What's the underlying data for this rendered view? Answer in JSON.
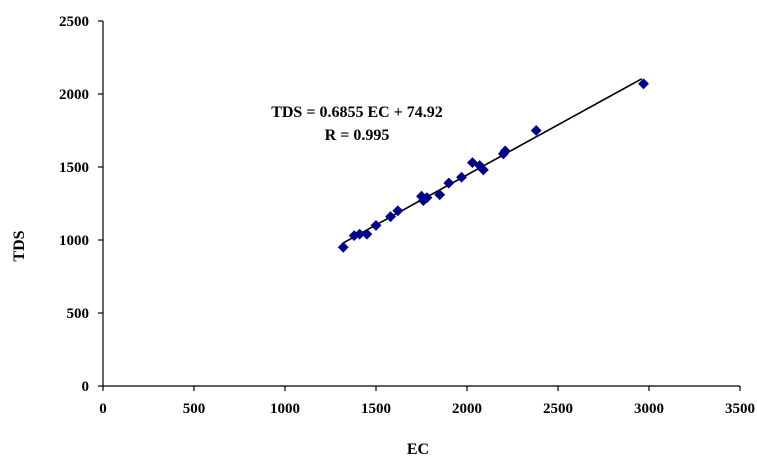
{
  "chart_data": {
    "type": "scatter",
    "xlabel": "EC",
    "ylabel": "TDS",
    "xlim": [
      0,
      3500
    ],
    "ylim": [
      0,
      2500
    ],
    "x_ticks": [
      0,
      500,
      1000,
      1500,
      2000,
      2500,
      3000,
      3500
    ],
    "y_ticks": [
      0,
      500,
      1000,
      1500,
      2000,
      2500
    ],
    "grid": false,
    "marker_color": "#00008B",
    "points": [
      {
        "x": 1320,
        "y": 950
      },
      {
        "x": 1380,
        "y": 1030
      },
      {
        "x": 1410,
        "y": 1040
      },
      {
        "x": 1450,
        "y": 1040
      },
      {
        "x": 1500,
        "y": 1100
      },
      {
        "x": 1580,
        "y": 1160
      },
      {
        "x": 1620,
        "y": 1200
      },
      {
        "x": 1750,
        "y": 1300
      },
      {
        "x": 1760,
        "y": 1270
      },
      {
        "x": 1780,
        "y": 1290
      },
      {
        "x": 1850,
        "y": 1310
      },
      {
        "x": 1900,
        "y": 1390
      },
      {
        "x": 1970,
        "y": 1430
      },
      {
        "x": 2030,
        "y": 1530
      },
      {
        "x": 2070,
        "y": 1510
      },
      {
        "x": 2090,
        "y": 1480
      },
      {
        "x": 2200,
        "y": 1590
      },
      {
        "x": 2210,
        "y": 1610
      },
      {
        "x": 2380,
        "y": 1750
      },
      {
        "x": 2970,
        "y": 2070
      }
    ],
    "trendline": {
      "slope": 0.6855,
      "intercept": 74.92,
      "x_range": [
        1320,
        2960
      ],
      "color": "#000000"
    },
    "annotations": [
      {
        "id": "equation",
        "text": "TDS = 0.6855 EC + 74.92"
      },
      {
        "id": "r-value",
        "text": "R = 0.995"
      }
    ]
  }
}
